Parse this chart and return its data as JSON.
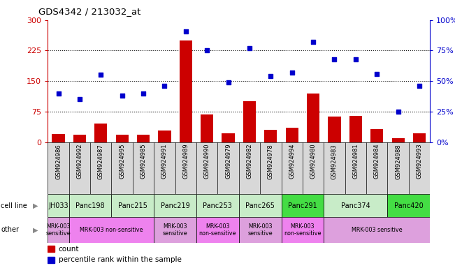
{
  "title": "GDS4342 / 213032_at",
  "samples": [
    "GSM924986",
    "GSM924992",
    "GSM924987",
    "GSM924995",
    "GSM924985",
    "GSM924991",
    "GSM924989",
    "GSM924990",
    "GSM924979",
    "GSM924982",
    "GSM924978",
    "GSM924994",
    "GSM924980",
    "GSM924983",
    "GSM924981",
    "GSM924984",
    "GSM924988",
    "GSM924993"
  ],
  "counts": [
    20,
    18,
    45,
    18,
    18,
    28,
    250,
    68,
    22,
    100,
    30,
    35,
    120,
    62,
    65,
    32,
    10,
    22
  ],
  "percentiles": [
    40,
    35,
    55,
    38,
    40,
    46,
    91,
    75,
    49,
    77,
    54,
    57,
    82,
    68,
    68,
    56,
    25,
    46
  ],
  "cell_lines": [
    {
      "name": "JH033",
      "start": 0,
      "end": 1,
      "color": "#c8ecc8"
    },
    {
      "name": "Panc198",
      "start": 1,
      "end": 3,
      "color": "#c8ecc8"
    },
    {
      "name": "Panc215",
      "start": 3,
      "end": 5,
      "color": "#c8ecc8"
    },
    {
      "name": "Panc219",
      "start": 5,
      "end": 7,
      "color": "#c8ecc8"
    },
    {
      "name": "Panc253",
      "start": 7,
      "end": 9,
      "color": "#c8ecc8"
    },
    {
      "name": "Panc265",
      "start": 9,
      "end": 11,
      "color": "#c8ecc8"
    },
    {
      "name": "Panc291",
      "start": 11,
      "end": 13,
      "color": "#44dd44"
    },
    {
      "name": "Panc374",
      "start": 13,
      "end": 16,
      "color": "#c8ecc8"
    },
    {
      "name": "Panc420",
      "start": 16,
      "end": 18,
      "color": "#44dd44"
    }
  ],
  "other_groups": [
    {
      "label": "MRK-003\nsensitive",
      "start": 0,
      "end": 1,
      "color": "#dda0dd"
    },
    {
      "label": "MRK-003 non-sensitive",
      "start": 1,
      "end": 5,
      "color": "#ee82ee"
    },
    {
      "label": "MRK-003\nsensitive",
      "start": 5,
      "end": 7,
      "color": "#dda0dd"
    },
    {
      "label": "MRK-003\nnon-sensitive",
      "start": 7,
      "end": 9,
      "color": "#ee82ee"
    },
    {
      "label": "MRK-003\nsensitive",
      "start": 9,
      "end": 11,
      "color": "#dda0dd"
    },
    {
      "label": "MRK-003\nnon-sensitive",
      "start": 11,
      "end": 13,
      "color": "#ee82ee"
    },
    {
      "label": "MRK-003 sensitive",
      "start": 13,
      "end": 18,
      "color": "#dda0dd"
    }
  ],
  "ylim_left": [
    0,
    300
  ],
  "ylim_right": [
    0,
    100
  ],
  "yticks_left": [
    0,
    75,
    150,
    225,
    300
  ],
  "yticks_right": [
    0,
    25,
    50,
    75,
    100
  ],
  "bar_color": "#cc0000",
  "scatter_color": "#0000cc",
  "background_color": "#ffffff",
  "sample_bg_color": "#d8d8d8"
}
